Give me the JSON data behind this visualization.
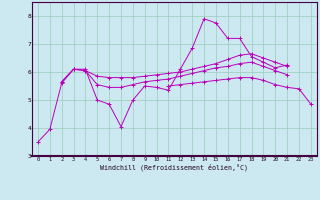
{
  "xlabel": "Windchill (Refroidissement éolien,°C)",
  "background_color": "#cce8f0",
  "grid_color": "#99ccbb",
  "line_color": "#bb00bb",
  "xlim": [
    -0.5,
    23.5
  ],
  "ylim": [
    3.0,
    8.5
  ],
  "yticks": [
    3,
    4,
    5,
    6,
    7,
    8
  ],
  "xticks": [
    0,
    1,
    2,
    3,
    4,
    5,
    6,
    7,
    8,
    9,
    10,
    11,
    12,
    13,
    14,
    15,
    16,
    17,
    18,
    19,
    20,
    21,
    22,
    23
  ],
  "series": [
    [
      3.5,
      3.95,
      5.6,
      6.1,
      6.1,
      5.0,
      4.85,
      4.05,
      5.0,
      5.5,
      5.45,
      5.35,
      6.1,
      6.85,
      7.9,
      7.75,
      7.2,
      7.2,
      6.55,
      6.35,
      6.15,
      6.25,
      null,
      null
    ],
    [
      null,
      null,
      5.65,
      6.1,
      6.05,
      5.85,
      5.8,
      5.8,
      5.8,
      5.85,
      5.9,
      5.95,
      6.0,
      6.1,
      6.2,
      6.3,
      6.45,
      6.6,
      6.65,
      6.5,
      6.35,
      6.2,
      null,
      null
    ],
    [
      null,
      null,
      5.65,
      6.1,
      6.05,
      5.55,
      5.45,
      5.45,
      5.55,
      5.65,
      5.7,
      5.75,
      5.85,
      5.95,
      6.05,
      6.15,
      6.2,
      6.3,
      6.35,
      6.2,
      6.05,
      5.9,
      null,
      null
    ],
    [
      null,
      null,
      null,
      null,
      null,
      null,
      null,
      null,
      null,
      null,
      null,
      5.5,
      5.55,
      5.6,
      5.65,
      5.7,
      5.75,
      5.8,
      5.8,
      5.7,
      5.55,
      5.45,
      5.4,
      4.85
    ]
  ]
}
